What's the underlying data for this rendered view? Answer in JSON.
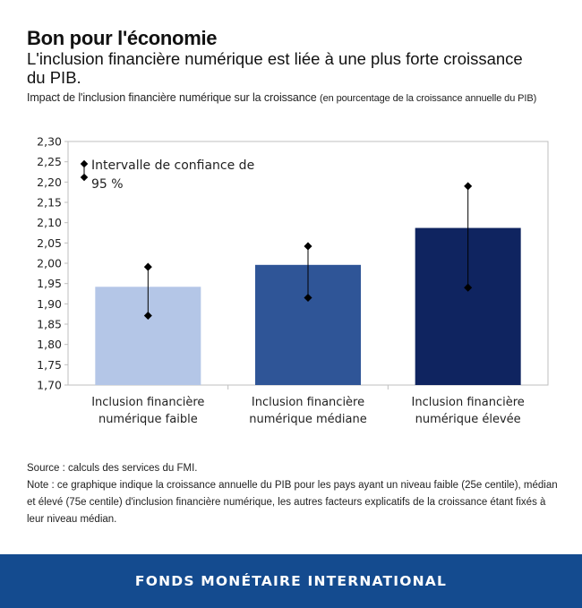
{
  "header": {
    "title": "Bon pour l'économie",
    "subtitle": "L'inclusion financière numérique est liée à une plus forte croissance du PIB.",
    "caption_main": "Impact de l'inclusion financière numérique sur la croissance ",
    "caption_unit": "(en pourcentage de la croissance annuelle du PIB)"
  },
  "chart_data": {
    "type": "bar",
    "categories": [
      [
        "Inclusion financière",
        "numérique faible"
      ],
      [
        "Inclusion financière",
        "numérique médiane"
      ],
      [
        "Inclusion financière",
        "numérique élevée"
      ]
    ],
    "values": [
      1.942,
      1.996,
      2.087
    ],
    "error_low": [
      1.871,
      1.915,
      1.94
    ],
    "error_high": [
      1.991,
      2.042,
      2.19
    ],
    "bar_colors": [
      "#b4c6e7",
      "#2f5597",
      "#0f2460"
    ],
    "ylim": [
      1.7,
      2.3
    ],
    "yticks": [
      "1,70",
      "1,75",
      "1,80",
      "1,85",
      "1,90",
      "1,95",
      "2,00",
      "2,05",
      "2,10",
      "2,15",
      "2,20",
      "2,25",
      "2,30"
    ],
    "legend": [
      "Intervalle de confiance de",
      "95 %"
    ],
    "legend_position": "top-left",
    "grid": false
  },
  "notes": {
    "source": "Source : calculs des services du FMI.",
    "note": "Note : ce graphique indique la croissance annuelle du PIB pour les pays ayant un niveau faible (25e centile), médian et élevé (75e centile) d'inclusion financière numérique, les autres facteurs explicatifs de la croissance étant fixés à leur niveau médian."
  },
  "footer": {
    "org": "FONDS MONÉTAIRE INTERNATIONAL"
  },
  "colors": {
    "footer_bg": "#144b8f",
    "axis": "#bfbfbf"
  }
}
